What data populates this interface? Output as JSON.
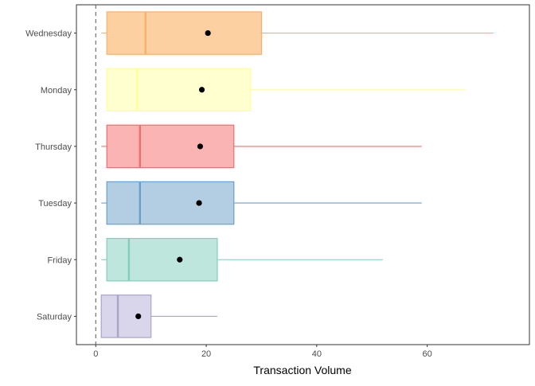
{
  "chart_data": {
    "type": "boxplot",
    "orientation": "horizontal",
    "xlabel": "Transaction Volume",
    "ylabel": "",
    "xlim": [
      -3.5,
      78.5
    ],
    "x_ticks": [
      "0",
      "20",
      "40",
      "60"
    ],
    "reference_line": {
      "x": 0,
      "style": "dashed",
      "color": "#666666"
    },
    "grid": false,
    "categories": [
      "Wednesday",
      "Monday",
      "Thursday",
      "Tuesday",
      "Friday",
      "Saturday"
    ],
    "boxes": [
      {
        "category": "Wednesday",
        "min": 1,
        "q1": 2,
        "median": 9,
        "q3": 30,
        "max": 72,
        "mean": 20.3,
        "fill": "#fdd0a2",
        "stroke": "#fdae6b"
      },
      {
        "category": "Monday",
        "min": 2,
        "q1": 2,
        "median": 7.5,
        "q3": 28,
        "max": 67,
        "mean": 19.2,
        "fill": "#ffffd0",
        "stroke": "#ffff99"
      },
      {
        "category": "Thursday",
        "min": 1,
        "q1": 2,
        "median": 8,
        "q3": 25,
        "max": 59,
        "mean": 18.9,
        "fill": "#fbb4b4",
        "stroke": "#ef6f6a"
      },
      {
        "category": "Tuesday",
        "min": 1,
        "q1": 2,
        "median": 8,
        "q3": 25,
        "max": 59,
        "mean": 18.7,
        "fill": "#b3cde3",
        "stroke": "#6a9fcb"
      },
      {
        "category": "Friday",
        "min": 1,
        "q1": 2,
        "median": 6,
        "q3": 22,
        "max": 52,
        "mean": 15.2,
        "fill": "#bfe6dd",
        "stroke": "#82cdbb"
      },
      {
        "category": "Saturday",
        "min": 1,
        "q1": 1,
        "median": 4,
        "q3": 10,
        "max": 22,
        "mean": 7.7,
        "fill": "#d9d5ea",
        "stroke": "#aaa3cc"
      }
    ]
  }
}
